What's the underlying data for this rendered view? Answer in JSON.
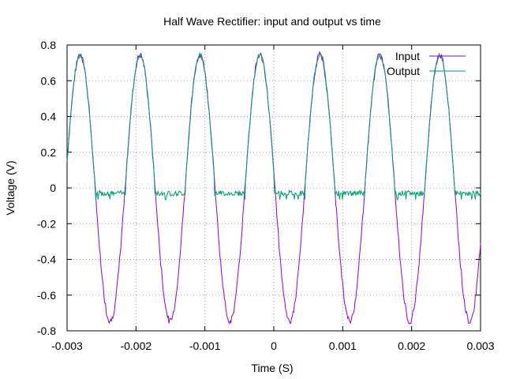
{
  "chart_data": {
    "type": "line",
    "title": "Half Wave Rectifier: input and output vs time",
    "xlabel": "Time (S)",
    "ylabel": "Voltage (V)",
    "xlim": [
      -0.003,
      0.003
    ],
    "ylim": [
      -0.8,
      0.8
    ],
    "x_ticks": [
      "-0.003",
      "-0.002",
      "-0.001",
      "0",
      "0.001",
      "0.002",
      "0.003"
    ],
    "y_ticks": [
      "0.8",
      "0.6",
      "0.4",
      "0.2",
      "0",
      "-0.2",
      "-0.4",
      "-0.6",
      "-0.8"
    ],
    "grid": true,
    "legend_position": "top-right",
    "signal": {
      "frequency_hz": 1150,
      "amplitude_v": 0.745,
      "peak_times_s": [
        -0.00281,
        -0.00194,
        -0.00107,
        -0.0002,
        0.00067,
        0.00154,
        0.00241
      ],
      "output_floor_v": -0.03,
      "output_dip_v": -0.065
    },
    "series": [
      {
        "name": "Input",
        "color": "#9400d3",
        "description_values": "sinusoid between -0.75 and 0.74"
      },
      {
        "name": "Output",
        "color": "#009e73",
        "description_values": "positive half-cycles, about -0.03 during negative half-cycles"
      }
    ]
  }
}
